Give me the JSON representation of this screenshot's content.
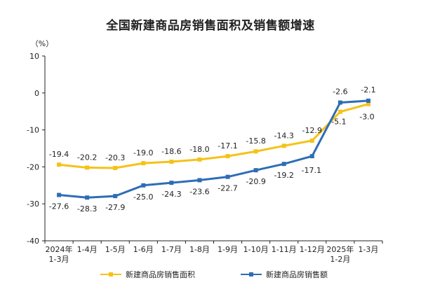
{
  "chart_data": {
    "type": "line",
    "title": "全国新建商品房销售面积及销售额增速",
    "unit_label": "（%）",
    "categories": [
      "2024年\n1-3月",
      "1-4月",
      "1-5月",
      "1-6月",
      "1-7月",
      "1-8月",
      "1-9月",
      "1-10月",
      "1-11月",
      "1-12月",
      "2025年\n1-2月",
      "1-3月"
    ],
    "ylim": [
      -40,
      10
    ],
    "yticks": [
      10,
      0,
      -10,
      -20,
      -30,
      -40
    ],
    "grid": false,
    "legend_position": "bottom",
    "series": [
      {
        "name": "新建商品房销售面积",
        "color": "#f5c218",
        "values": [
          -19.4,
          -20.2,
          -20.3,
          -19.0,
          -18.6,
          -18.0,
          -17.1,
          -15.8,
          -14.3,
          -12.9,
          -5.1,
          -3.0
        ],
        "label_position": "above"
      },
      {
        "name": "新建商品房销售额",
        "color": "#2d6db5",
        "values": [
          -27.6,
          -28.3,
          -27.9,
          -25.0,
          -24.3,
          -23.6,
          -22.7,
          -20.9,
          -19.2,
          -17.1,
          -2.6,
          -2.1
        ],
        "label_position": "below"
      }
    ]
  }
}
